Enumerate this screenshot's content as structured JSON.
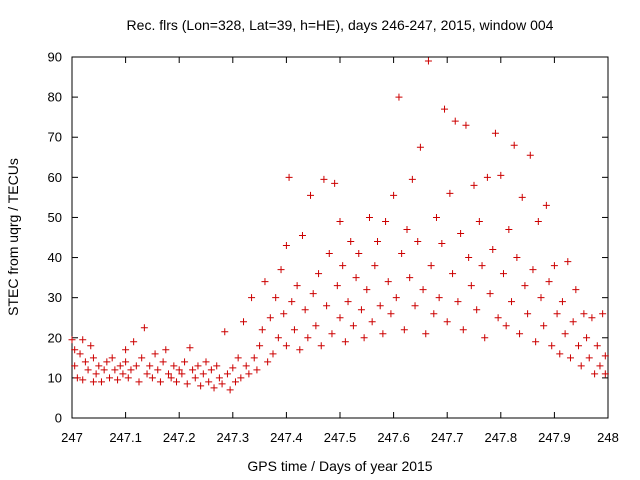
{
  "chart_data": {
    "type": "scatter",
    "title": "Rec. flrs (Lon=328, Lat=39, h=HE), days 246-247, 2015, window 004",
    "xlabel": "GPS time / Days of year 2015",
    "ylabel": "STEC from uqrg / TECUs",
    "xlim": [
      247,
      248
    ],
    "ylim": [
      0,
      90
    ],
    "x_ticks": [
      247,
      247.1,
      247.2,
      247.3,
      247.4,
      247.5,
      247.6,
      247.7,
      247.8,
      247.9,
      248
    ],
    "x_tick_labels": [
      "247",
      "247.1",
      "247.2",
      "247.3",
      "247.4",
      "247.5",
      "247.6",
      "247.7",
      "247.8",
      "247.9",
      "248"
    ],
    "y_ticks": [
      0,
      10,
      20,
      30,
      40,
      50,
      60,
      70,
      80,
      90
    ],
    "y_tick_labels": [
      "0",
      "10",
      "20",
      "30",
      "40",
      "50",
      "60",
      "70",
      "80",
      "90"
    ],
    "grid": false,
    "marker": "plus",
    "marker_color": "#cc0000",
    "series": [
      {
        "points": [
          [
            247.0,
            19.5
          ],
          [
            247.005,
            13
          ],
          [
            247.005,
            17
          ],
          [
            247.01,
            10
          ],
          [
            247.015,
            16
          ],
          [
            247.02,
            9.5
          ],
          [
            247.02,
            19.5
          ],
          [
            247.025,
            14
          ],
          [
            247.03,
            12
          ],
          [
            247.035,
            18
          ],
          [
            247.04,
            9
          ],
          [
            247.04,
            15
          ],
          [
            247.045,
            11
          ],
          [
            247.05,
            13
          ],
          [
            247.055,
            9
          ],
          [
            247.06,
            12
          ],
          [
            247.065,
            14
          ],
          [
            247.07,
            10
          ],
          [
            247.075,
            15
          ],
          [
            247.08,
            12
          ],
          [
            247.085,
            9.5
          ],
          [
            247.09,
            13
          ],
          [
            247.095,
            11
          ],
          [
            247.1,
            14
          ],
          [
            247.1,
            17
          ],
          [
            247.105,
            10
          ],
          [
            247.11,
            12
          ],
          [
            247.115,
            19
          ],
          [
            247.12,
            13
          ],
          [
            247.125,
            9
          ],
          [
            247.13,
            15
          ],
          [
            247.135,
            22.5
          ],
          [
            247.14,
            11
          ],
          [
            247.145,
            13
          ],
          [
            247.15,
            10
          ],
          [
            247.155,
            16
          ],
          [
            247.16,
            12
          ],
          [
            247.165,
            9
          ],
          [
            247.17,
            14
          ],
          [
            247.175,
            17
          ],
          [
            247.18,
            11
          ],
          [
            247.185,
            10
          ],
          [
            247.19,
            13
          ],
          [
            247.195,
            9
          ],
          [
            247.2,
            12
          ],
          [
            247.205,
            11
          ],
          [
            247.21,
            14
          ],
          [
            247.215,
            8.5
          ],
          [
            247.22,
            17.5
          ],
          [
            247.225,
            12
          ],
          [
            247.23,
            10
          ],
          [
            247.235,
            13
          ],
          [
            247.24,
            8
          ],
          [
            247.245,
            11
          ],
          [
            247.25,
            14
          ],
          [
            247.255,
            9
          ],
          [
            247.26,
            12
          ],
          [
            247.265,
            7.5
          ],
          [
            247.27,
            13
          ],
          [
            247.275,
            10
          ],
          [
            247.28,
            8.5
          ],
          [
            247.285,
            21.5
          ],
          [
            247.29,
            11
          ],
          [
            247.295,
            7
          ],
          [
            247.3,
            12.5
          ],
          [
            247.305,
            9
          ],
          [
            247.31,
            15
          ],
          [
            247.315,
            10
          ],
          [
            247.32,
            24
          ],
          [
            247.325,
            13
          ],
          [
            247.33,
            11
          ],
          [
            247.335,
            30
          ],
          [
            247.34,
            15
          ],
          [
            247.345,
            12
          ],
          [
            247.35,
            18
          ],
          [
            247.355,
            22
          ],
          [
            247.36,
            34
          ],
          [
            247.365,
            14
          ],
          [
            247.37,
            25
          ],
          [
            247.375,
            16
          ],
          [
            247.38,
            30
          ],
          [
            247.385,
            20
          ],
          [
            247.39,
            37
          ],
          [
            247.395,
            26
          ],
          [
            247.4,
            43
          ],
          [
            247.4,
            18
          ],
          [
            247.405,
            60
          ],
          [
            247.41,
            29
          ],
          [
            247.415,
            22
          ],
          [
            247.42,
            33
          ],
          [
            247.425,
            17
          ],
          [
            247.43,
            45.5
          ],
          [
            247.435,
            27
          ],
          [
            247.44,
            20
          ],
          [
            247.445,
            55.5
          ],
          [
            247.45,
            31
          ],
          [
            247.455,
            23
          ],
          [
            247.46,
            36
          ],
          [
            247.465,
            18
          ],
          [
            247.47,
            59.5
          ],
          [
            247.475,
            28
          ],
          [
            247.48,
            41
          ],
          [
            247.485,
            21
          ],
          [
            247.49,
            58.5
          ],
          [
            247.495,
            33
          ],
          [
            247.5,
            25
          ],
          [
            247.5,
            49
          ],
          [
            247.505,
            38
          ],
          [
            247.51,
            19
          ],
          [
            247.515,
            29
          ],
          [
            247.52,
            44
          ],
          [
            247.525,
            23
          ],
          [
            247.53,
            35
          ],
          [
            247.535,
            41
          ],
          [
            247.54,
            27
          ],
          [
            247.545,
            20
          ],
          [
            247.55,
            32
          ],
          [
            247.555,
            50
          ],
          [
            247.56,
            24
          ],
          [
            247.565,
            38
          ],
          [
            247.57,
            44
          ],
          [
            247.575,
            28
          ],
          [
            247.58,
            21
          ],
          [
            247.585,
            49
          ],
          [
            247.59,
            34
          ],
          [
            247.595,
            26
          ],
          [
            247.6,
            55.5
          ],
          [
            247.605,
            30
          ],
          [
            247.61,
            80
          ],
          [
            247.615,
            41
          ],
          [
            247.62,
            22
          ],
          [
            247.625,
            47
          ],
          [
            247.63,
            35
          ],
          [
            247.635,
            59.5
          ],
          [
            247.64,
            28
          ],
          [
            247.645,
            44
          ],
          [
            247.65,
            67.5
          ],
          [
            247.655,
            32
          ],
          [
            247.66,
            21
          ],
          [
            247.665,
            89
          ],
          [
            247.67,
            38
          ],
          [
            247.675,
            26
          ],
          [
            247.68,
            50
          ],
          [
            247.685,
            30
          ],
          [
            247.69,
            43.5
          ],
          [
            247.695,
            77
          ],
          [
            247.7,
            24
          ],
          [
            247.705,
            56
          ],
          [
            247.71,
            36
          ],
          [
            247.715,
            74
          ],
          [
            247.72,
            29
          ],
          [
            247.725,
            46
          ],
          [
            247.73,
            22
          ],
          [
            247.735,
            73
          ],
          [
            247.74,
            40
          ],
          [
            247.745,
            33
          ],
          [
            247.75,
            58
          ],
          [
            247.755,
            27
          ],
          [
            247.76,
            49
          ],
          [
            247.765,
            38
          ],
          [
            247.77,
            20
          ],
          [
            247.775,
            60
          ],
          [
            247.78,
            31
          ],
          [
            247.785,
            42
          ],
          [
            247.79,
            71
          ],
          [
            247.795,
            25
          ],
          [
            247.8,
            60.5
          ],
          [
            247.805,
            36
          ],
          [
            247.81,
            23
          ],
          [
            247.815,
            47
          ],
          [
            247.82,
            29
          ],
          [
            247.825,
            68
          ],
          [
            247.83,
            40
          ],
          [
            247.835,
            21
          ],
          [
            247.84,
            55
          ],
          [
            247.845,
            33
          ],
          [
            247.85,
            26
          ],
          [
            247.855,
            65.5
          ],
          [
            247.86,
            37
          ],
          [
            247.865,
            19
          ],
          [
            247.87,
            49
          ],
          [
            247.875,
            30
          ],
          [
            247.88,
            23
          ],
          [
            247.885,
            53
          ],
          [
            247.89,
            34
          ],
          [
            247.895,
            18
          ],
          [
            247.9,
            38
          ],
          [
            247.905,
            26
          ],
          [
            247.91,
            16
          ],
          [
            247.915,
            29
          ],
          [
            247.92,
            21
          ],
          [
            247.925,
            39
          ],
          [
            247.93,
            15
          ],
          [
            247.935,
            24
          ],
          [
            247.94,
            32
          ],
          [
            247.945,
            18
          ],
          [
            247.95,
            13
          ],
          [
            247.955,
            26
          ],
          [
            247.96,
            20
          ],
          [
            247.965,
            15
          ],
          [
            247.97,
            25
          ],
          [
            247.975,
            11
          ],
          [
            247.98,
            18
          ],
          [
            247.985,
            13
          ],
          [
            247.99,
            26
          ],
          [
            247.995,
            11
          ],
          [
            247.995,
            15.5
          ]
        ]
      }
    ]
  }
}
